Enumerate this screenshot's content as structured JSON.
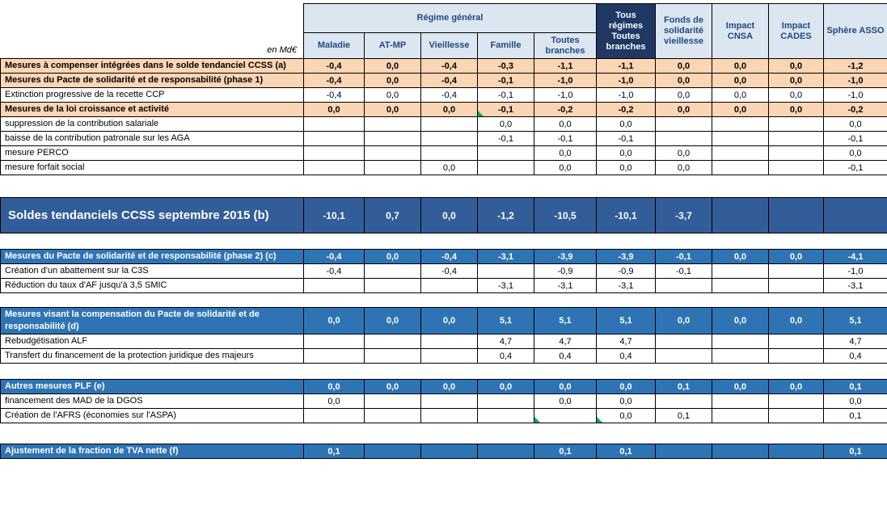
{
  "unit_label": "en Md€",
  "header": {
    "group_label": "Régime général",
    "grouped_columns": [
      "Maladie",
      "AT-MP",
      "Vieillesse",
      "Famille",
      "Toutes branches"
    ],
    "standalone_columns": [
      {
        "label": "Tous régimes Toutes branches",
        "dark": true
      },
      {
        "label": "Fonds de solidarité vieillesse",
        "dark": false
      },
      {
        "label": "Impact CNSA",
        "dark": false
      },
      {
        "label": "Impact CADES",
        "dark": false
      },
      {
        "label": "Sphère ASSO",
        "dark": false
      }
    ]
  },
  "colors": {
    "header_bg": "#DCE6F1",
    "header_text": "#1F497D",
    "dark_column_bg": "#1F3864",
    "orange_row_bg": "#FCD5B4",
    "section_row_bg": "#2E74B5",
    "band_row_bg": "#325D99",
    "flag_green": "#00B050",
    "border": "#000000"
  },
  "sections": [
    {
      "name": "mesures-tendanciel",
      "rows": [
        {
          "label": "Mesures à compenser intégrées dans le solde tendanciel CCSS (a)",
          "style": "orange",
          "values": [
            "-0,4",
            "0,0",
            "-0,4",
            "-0,3",
            "-1,1",
            "-1,1",
            "0,0",
            "0,0",
            "0,0",
            "-1,2"
          ]
        },
        {
          "label": "Mesures du Pacte de solidarité et de responsabilité (phase 1)",
          "style": "orange",
          "values": [
            "-0,4",
            "0,0",
            "-0,4",
            "-0,1",
            "-1,0",
            "-1,0",
            "0,0",
            "0,0",
            "0,0",
            "-1,0"
          ]
        },
        {
          "label": "Extinction progressive de la recette CCP",
          "style": "plain",
          "values": [
            "-0,4",
            "0,0",
            "-0,4",
            "-0,1",
            "-1,0",
            "-1,0",
            "0,0",
            "0,0",
            "0,0",
            "-1,0"
          ]
        },
        {
          "label": "Mesures de la loi croissance et activité",
          "style": "orange",
          "values": [
            "0,0",
            "0,0",
            "0,0",
            "-0,1",
            "-0,2",
            "-0,2",
            "0,0",
            "0,0",
            "0,0",
            "-0,2"
          ],
          "flags": [
            3
          ]
        },
        {
          "label": "suppression de la contribution salariale",
          "style": "plain",
          "values": [
            "",
            "",
            "",
            "0,0",
            "0,0",
            "0,0",
            "",
            "",
            "",
            "0,0"
          ]
        },
        {
          "label": "baisse de la contribution patronale sur les AGA",
          "style": "plain",
          "values": [
            "",
            "",
            "",
            "-0,1",
            "-0,1",
            "-0,1",
            "",
            "",
            "",
            "-0,1"
          ]
        },
        {
          "label": "mesure PERCO",
          "style": "plain",
          "values": [
            "",
            "",
            "",
            "",
            "0,0",
            "0,0",
            "0,0",
            "",
            "",
            "0,0"
          ]
        },
        {
          "label": "mesure forfait social",
          "style": "plain",
          "values": [
            "",
            "",
            "0,0",
            "",
            "0,0",
            "0,0",
            "0,0",
            "",
            "",
            "-0,1"
          ]
        }
      ]
    },
    {
      "name": "soldes-tendanciels",
      "rows": [
        {
          "label": "Soldes tendanciels CCSS septembre 2015 (b)",
          "style": "band",
          "values": [
            "-10,1",
            "0,7",
            "0,0",
            "-1,2",
            "-10,5",
            "-10,1",
            "-3,7",
            "",
            "",
            ""
          ]
        }
      ]
    },
    {
      "name": "pacte-phase2",
      "rows": [
        {
          "label": "Mesures du Pacte de solidarité et de responsabilité (phase 2) (c)",
          "style": "blue",
          "values": [
            "-0,4",
            "0,0",
            "-0,4",
            "-3,1",
            "-3,9",
            "-3,9",
            "-0,1",
            "0,0",
            "0,0",
            "-4,1"
          ]
        },
        {
          "label": "Création d'un abattement sur la C3S",
          "style": "plain",
          "values": [
            "-0,4",
            "",
            "-0,4",
            "",
            "-0,9",
            "-0,9",
            "-0,1",
            "",
            "",
            "-1,0"
          ]
        },
        {
          "label": "Réduction du taux d'AF jusqu'à 3,5 SMIC",
          "style": "plain",
          "values": [
            "",
            "",
            "",
            "-3,1",
            "-3,1",
            "-3,1",
            "",
            "",
            "",
            "-3,1"
          ]
        }
      ]
    },
    {
      "name": "compensation-pacte",
      "rows": [
        {
          "label": "Mesures visant la compensation du Pacte de solidarité et de responsabilité (d)",
          "style": "blue",
          "values": [
            "0,0",
            "0,0",
            "0,0",
            "5,1",
            "5,1",
            "5,1",
            "0,0",
            "0,0",
            "0,0",
            "5,1"
          ]
        },
        {
          "label": "Rebudgétisation ALF",
          "style": "plain",
          "values": [
            "",
            "",
            "",
            "4,7",
            "4,7",
            "4,7",
            "",
            "",
            "",
            "4,7"
          ]
        },
        {
          "label": "Transfert du financement de la protection juridique des majeurs",
          "style": "plain",
          "values": [
            "",
            "",
            "",
            "0,4",
            "0,4",
            "0,4",
            "",
            "",
            "",
            "0,4"
          ]
        }
      ]
    },
    {
      "name": "autres-mesures-plf",
      "rows": [
        {
          "label": "Autres mesures PLF (e)",
          "style": "blue",
          "values": [
            "0,0",
            "0,0",
            "0,0",
            "0,0",
            "0,0",
            "0,0",
            "0,1",
            "0,0",
            "0,0",
            "0,1"
          ]
        },
        {
          "label": "financement des MAD de la DGOS",
          "style": "plain",
          "values": [
            "0,0",
            "",
            "",
            "",
            "0,0",
            "0,0",
            "",
            "",
            "",
            "0,0"
          ]
        },
        {
          "label": "Création de l'AFRS (économies sur l'ASPA)",
          "style": "plain",
          "values": [
            "",
            "",
            "",
            "",
            "",
            "0,0",
            "0,1",
            "",
            "",
            "0,1"
          ],
          "flags": [
            4,
            5
          ]
        }
      ]
    },
    {
      "name": "ajustement-tva",
      "rows": [
        {
          "label": "Ajustement de la fraction de TVA nette (f)",
          "style": "blue",
          "values": [
            "0,1",
            "",
            "",
            "",
            "0,1",
            "0,1",
            "",
            "",
            "",
            "0,1"
          ]
        }
      ]
    }
  ]
}
